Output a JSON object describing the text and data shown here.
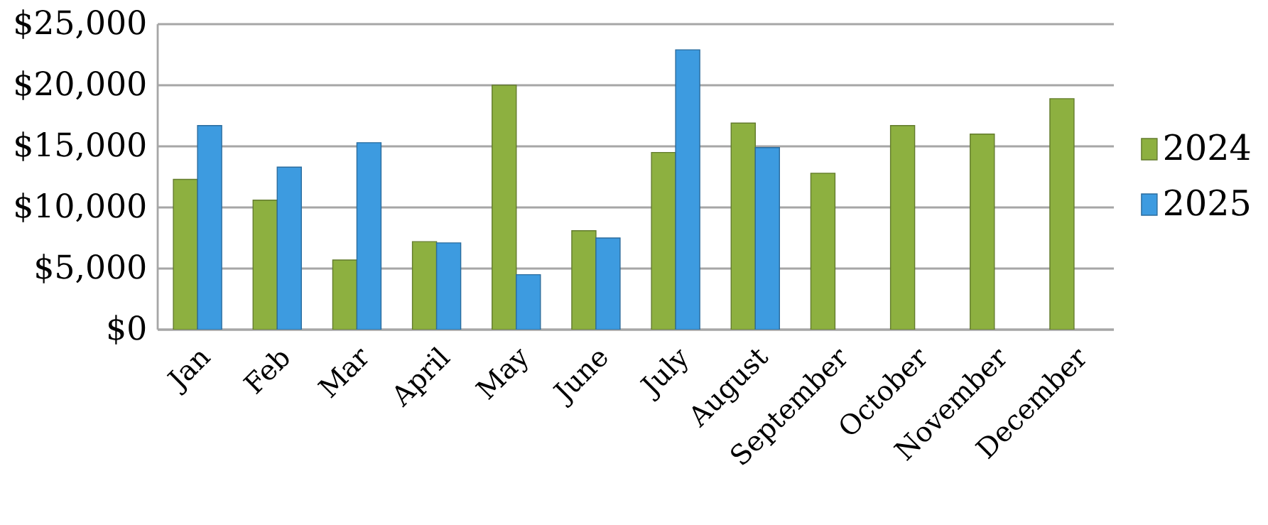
{
  "chart_data": {
    "type": "bar",
    "categories": [
      "Jan",
      "Feb",
      "Mar",
      "April",
      "May",
      "June",
      "July",
      "August",
      "September",
      "October",
      "November",
      "December"
    ],
    "series": [
      {
        "name": "2024",
        "color": "#8db040",
        "values": [
          12300,
          10600,
          5700,
          7200,
          20000,
          8100,
          14500,
          16900,
          12800,
          16700,
          16000,
          18900
        ]
      },
      {
        "name": "2025",
        "color": "#3d9be0",
        "values": [
          16700,
          13300,
          15300,
          7100,
          4500,
          7500,
          22900,
          14900,
          null,
          null,
          null,
          null
        ]
      }
    ],
    "ylim": [
      0,
      25000
    ],
    "yticks": [
      {
        "value": 0,
        "label": "$0"
      },
      {
        "value": 5000,
        "label": "$5,000"
      },
      {
        "value": 10000,
        "label": "$10,000"
      },
      {
        "value": 15000,
        "label": "$15,000"
      },
      {
        "value": 20000,
        "label": "$20,000"
      },
      {
        "value": 25000,
        "label": "$25,000"
      }
    ],
    "grid": "y",
    "legend": "right"
  }
}
